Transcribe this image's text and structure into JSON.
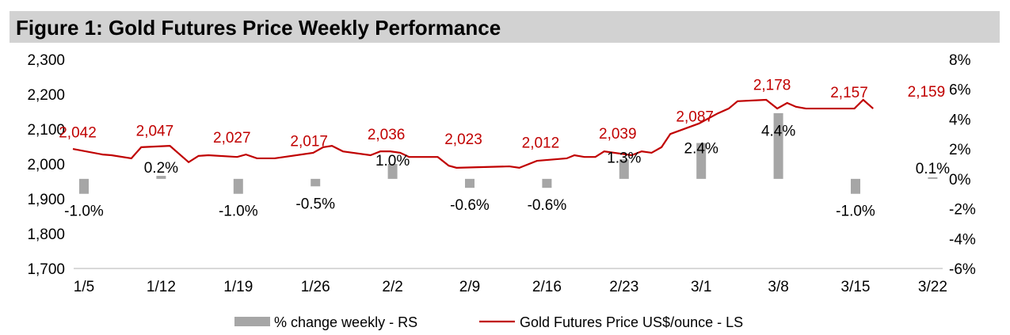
{
  "chart_data": {
    "type": "bar+line",
    "title": "Figure 1: Gold Futures Price Weekly Performance",
    "categories": [
      "1/5",
      "1/12",
      "1/19",
      "1/26",
      "2/2",
      "2/9",
      "2/16",
      "2/23",
      "3/1",
      "3/8",
      "3/15",
      "3/22"
    ],
    "left_axis": {
      "ticks": [
        "2,300",
        "2,200",
        "2,100",
        "2,000",
        "1,900",
        "1,800",
        "1,700"
      ],
      "range": [
        1700,
        2300
      ]
    },
    "right_axis": {
      "ticks": [
        "8%",
        "6%",
        "4%",
        "2%",
        "0%",
        "-2%",
        "-4%",
        "-6%"
      ],
      "range": [
        -6,
        8
      ]
    },
    "series": [
      {
        "name": "% change weekly - RS",
        "type": "bar",
        "axis": "right",
        "color": "#a6a6a6",
        "values": [
          -1.0,
          0.2,
          -1.0,
          -0.5,
          1.0,
          -0.6,
          -0.6,
          1.3,
          2.4,
          4.4,
          -1.0,
          0.1
        ],
        "labels": [
          "-1.0%",
          "0.2%",
          "-1.0%",
          "-0.5%",
          "1.0%",
          "-0.6%",
          "-0.6%",
          "1.3%",
          "2.4%",
          "4.4%",
          "-1.0%",
          "0.1%"
        ]
      },
      {
        "name": "Gold Futures Price US$/ounce - LS",
        "type": "line",
        "axis": "left",
        "color": "#c00000",
        "weekly_labels": [
          "2,042",
          "2,047",
          "2,027",
          "2,017",
          "2,036",
          "2,023",
          "2,012",
          "2,039",
          "2,087",
          "2,178",
          "2,157",
          "2,159"
        ],
        "weekly_values": [
          2042,
          2047,
          2027,
          2017,
          2036,
          2023,
          2012,
          2039,
          2087,
          2178,
          2157,
          2159
        ],
        "points_days_since_1_5": [
          [
            -0.5,
            2043
          ],
          [
            2.2,
            2027
          ],
          [
            3,
            2025
          ],
          [
            4.8,
            2016
          ],
          [
            5.7,
            2048
          ],
          [
            8.3,
            2052
          ],
          [
            10,
            2005
          ],
          [
            10.9,
            2023
          ],
          [
            11.8,
            2025
          ],
          [
            14.4,
            2020
          ],
          [
            15.2,
            2027
          ],
          [
            16.2,
            2016
          ],
          [
            17.8,
            2016
          ],
          [
            21.3,
            2032
          ],
          [
            22.2,
            2048
          ],
          [
            23,
            2052
          ],
          [
            24,
            2036
          ],
          [
            26.5,
            2025
          ],
          [
            27.4,
            2036
          ],
          [
            28.3,
            2036
          ],
          [
            29.2,
            2032
          ],
          [
            30,
            2020
          ],
          [
            32.6,
            2020
          ],
          [
            33.6,
            1995
          ],
          [
            34.3,
            1989
          ],
          [
            39.1,
            1993
          ],
          [
            40,
            1989
          ],
          [
            41.6,
            2009
          ],
          [
            44.3,
            2016
          ],
          [
            45,
            2025
          ],
          [
            45.9,
            2020
          ],
          [
            46.9,
            2020
          ],
          [
            47.7,
            2036
          ],
          [
            50.2,
            2025
          ],
          [
            51.1,
            2036
          ],
          [
            52,
            2032
          ],
          [
            52.9,
            2048
          ],
          [
            53.7,
            2086
          ],
          [
            56.3,
            2116
          ],
          [
            58,
            2145
          ],
          [
            59,
            2159
          ],
          [
            59.8,
            2180
          ],
          [
            62.4,
            2184
          ],
          [
            63.4,
            2159
          ],
          [
            64.3,
            2175
          ],
          [
            65.1,
            2164
          ],
          [
            66,
            2159
          ],
          [
            70.4,
            2159
          ],
          [
            71.2,
            2184
          ],
          [
            72.1,
            2159
          ]
        ]
      }
    ],
    "legend": {
      "position": "bottom",
      "entries": [
        "% change weekly - RS",
        "Gold Futures Price US$/ounce - LS"
      ]
    },
    "grid": false
  }
}
